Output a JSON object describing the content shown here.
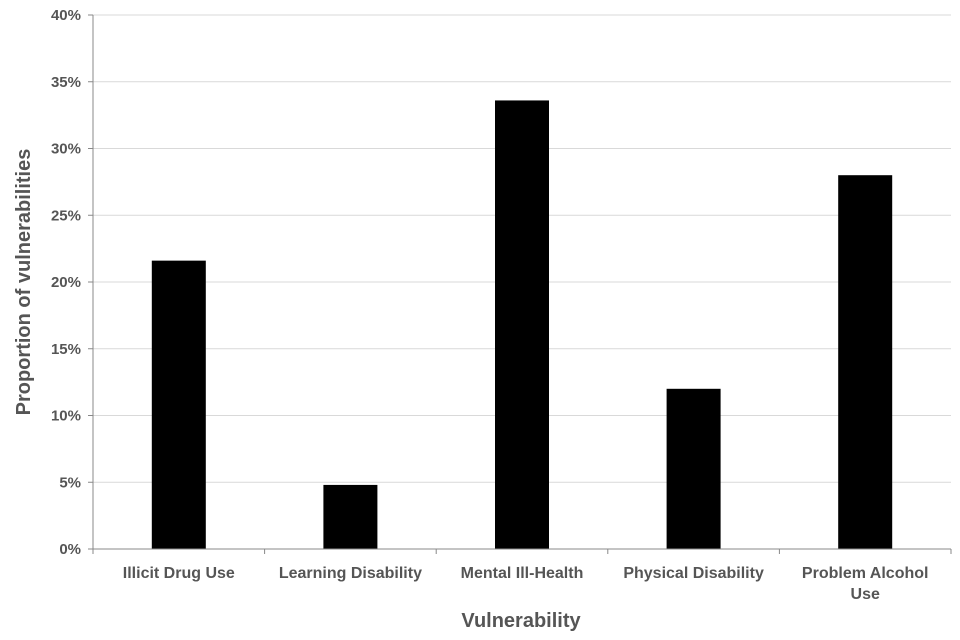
{
  "chart_data": {
    "type": "bar",
    "title": "",
    "xlabel": "Vulnerability",
    "ylabel": "Proportion of vulnerabilities",
    "categories": [
      [
        "Illicit Drug Use"
      ],
      [
        "Learning Disability"
      ],
      [
        "Mental Ill-Health"
      ],
      [
        "Physical Disability"
      ],
      [
        "Problem Alcohol",
        "Use"
      ]
    ],
    "values": [
      21.6,
      4.8,
      33.6,
      12.0,
      28.0
    ],
    "ylim": [
      0,
      40
    ],
    "yticks": [
      "0%",
      "5%",
      "10%",
      "15%",
      "20%",
      "25%",
      "30%",
      "35%",
      "40%"
    ],
    "grid": true,
    "legend": "none",
    "colors": {
      "bar": "#000000",
      "grid": "#d9d9d9",
      "axis": "#888888",
      "text": "#555555"
    }
  }
}
